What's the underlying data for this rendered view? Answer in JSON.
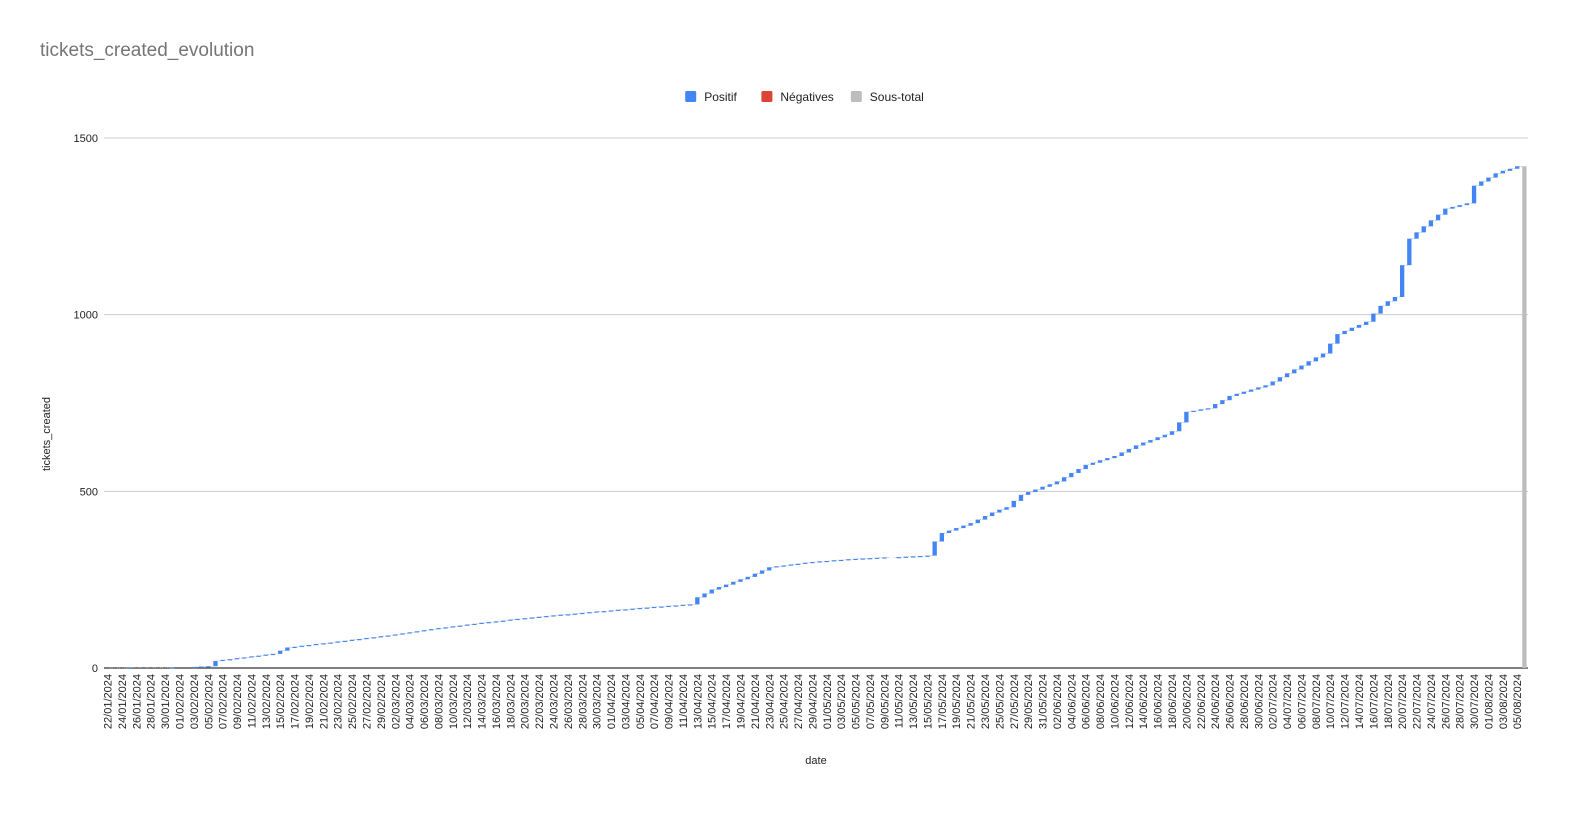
{
  "chart_data": {
    "type": "waterfall",
    "title": "tickets_created_evolution",
    "xlabel": "date",
    "ylabel": "tickets_created",
    "ylim": [
      0,
      1500
    ],
    "yticks": [
      0,
      500,
      1000,
      1500
    ],
    "grid": true,
    "legend_position": "top",
    "legend": [
      {
        "name": "Positif",
        "color": "#4285f4"
      },
      {
        "name": "Négatives",
        "color": "#db4437"
      },
      {
        "name": "Sous-total",
        "color": "#bdbdbd"
      }
    ],
    "x_start": "2024-01-22",
    "x_end": "2024-08-06",
    "x_tick_labels": [
      "22/01/2024",
      "24/01/2024",
      "26/01/2024",
      "28/01/2024",
      "30/01/2024",
      "01/02/2024",
      "03/02/2024",
      "05/02/2024",
      "07/02/2024",
      "09/02/2024",
      "11/02/2024",
      "13/02/2024",
      "15/02/2024",
      "17/02/2024",
      "19/02/2024",
      "21/02/2024",
      "23/02/2024",
      "25/02/2024",
      "27/02/2024",
      "29/02/2024",
      "02/03/2024",
      "04/03/2024",
      "06/03/2024",
      "08/03/2024",
      "10/03/2024",
      "12/03/2024",
      "14/03/2024",
      "16/03/2024",
      "18/03/2024",
      "20/03/2024",
      "22/03/2024",
      "24/03/2024",
      "26/03/2024",
      "28/03/2024",
      "30/03/2024",
      "01/04/2024",
      "03/04/2024",
      "05/04/2024",
      "07/04/2024",
      "09/04/2024",
      "11/04/2024",
      "13/04/2024",
      "15/04/2024",
      "17/04/2024",
      "19/04/2024",
      "21/04/2024",
      "23/04/2024",
      "25/04/2024",
      "27/04/2024",
      "29/04/2024",
      "01/05/2024",
      "03/05/2024",
      "05/05/2024",
      "07/05/2024",
      "09/05/2024",
      "11/05/2024",
      "13/05/2024",
      "15/05/2024",
      "17/05/2024",
      "19/05/2024",
      "21/05/2024",
      "23/05/2024",
      "25/05/2024",
      "27/05/2024",
      "29/05/2024",
      "31/05/2024",
      "02/06/2024",
      "04/06/2024",
      "06/06/2024",
      "08/06/2024",
      "10/06/2024",
      "12/06/2024",
      "14/06/2024",
      "16/06/2024",
      "18/06/2024",
      "20/06/2024",
      "22/06/2024",
      "24/06/2024",
      "26/06/2024",
      "28/06/2024",
      "30/06/2024",
      "02/07/2024",
      "04/07/2024",
      "06/07/2024",
      "08/07/2024",
      "10/07/2024",
      "12/07/2024",
      "14/07/2024",
      "16/07/2024",
      "18/07/2024",
      "20/07/2024",
      "22/07/2024",
      "24/07/2024",
      "26/07/2024",
      "28/07/2024",
      "30/07/2024",
      "01/08/2024",
      "03/08/2024",
      "05/08/2024"
    ],
    "cumulative_points": [
      [
        "2024-01-22",
        0
      ],
      [
        "2024-02-02",
        2
      ],
      [
        "2024-02-05",
        5
      ],
      [
        "2024-02-06",
        20
      ],
      [
        "2024-02-14",
        40
      ],
      [
        "2024-02-16",
        58
      ],
      [
        "2024-02-21",
        70
      ],
      [
        "2024-03-01",
        92
      ],
      [
        "2024-03-07",
        110
      ],
      [
        "2024-03-14",
        128
      ],
      [
        "2024-03-21",
        143
      ],
      [
        "2024-03-29",
        158
      ],
      [
        "2024-04-04",
        168
      ],
      [
        "2024-04-12",
        180
      ],
      [
        "2024-04-13",
        200
      ],
      [
        "2024-04-15",
        222
      ],
      [
        "2024-04-20",
        258
      ],
      [
        "2024-04-23",
        285
      ],
      [
        "2024-04-29",
        300
      ],
      [
        "2024-05-04",
        308
      ],
      [
        "2024-05-15",
        318
      ],
      [
        "2024-05-16",
        358
      ],
      [
        "2024-05-17",
        382
      ],
      [
        "2024-05-21",
        410
      ],
      [
        "2024-05-24",
        440
      ],
      [
        "2024-05-26",
        455
      ],
      [
        "2024-05-28",
        490
      ],
      [
        "2024-06-02",
        528
      ],
      [
        "2024-06-06",
        575
      ],
      [
        "2024-06-10",
        600
      ],
      [
        "2024-06-13",
        630
      ],
      [
        "2024-06-17",
        660
      ],
      [
        "2024-06-18",
        670
      ],
      [
        "2024-06-19",
        695
      ],
      [
        "2024-06-20",
        725
      ],
      [
        "2024-06-23",
        735
      ],
      [
        "2024-06-26",
        770
      ],
      [
        "2024-07-01",
        800
      ],
      [
        "2024-07-05",
        845
      ],
      [
        "2024-07-09",
        890
      ],
      [
        "2024-07-11",
        945
      ],
      [
        "2024-07-15",
        980
      ],
      [
        "2024-07-17",
        1025
      ],
      [
        "2024-07-19",
        1050
      ],
      [
        "2024-07-20",
        1140
      ],
      [
        "2024-07-21",
        1215
      ],
      [
        "2024-07-23",
        1250
      ],
      [
        "2024-07-26",
        1300
      ],
      [
        "2024-07-29",
        1315
      ],
      [
        "2024-07-30",
        1365
      ],
      [
        "2024-08-02",
        1400
      ],
      [
        "2024-08-05",
        1420
      ]
    ],
    "subtotal": {
      "date": "2024-08-06",
      "value": 1420
    }
  }
}
